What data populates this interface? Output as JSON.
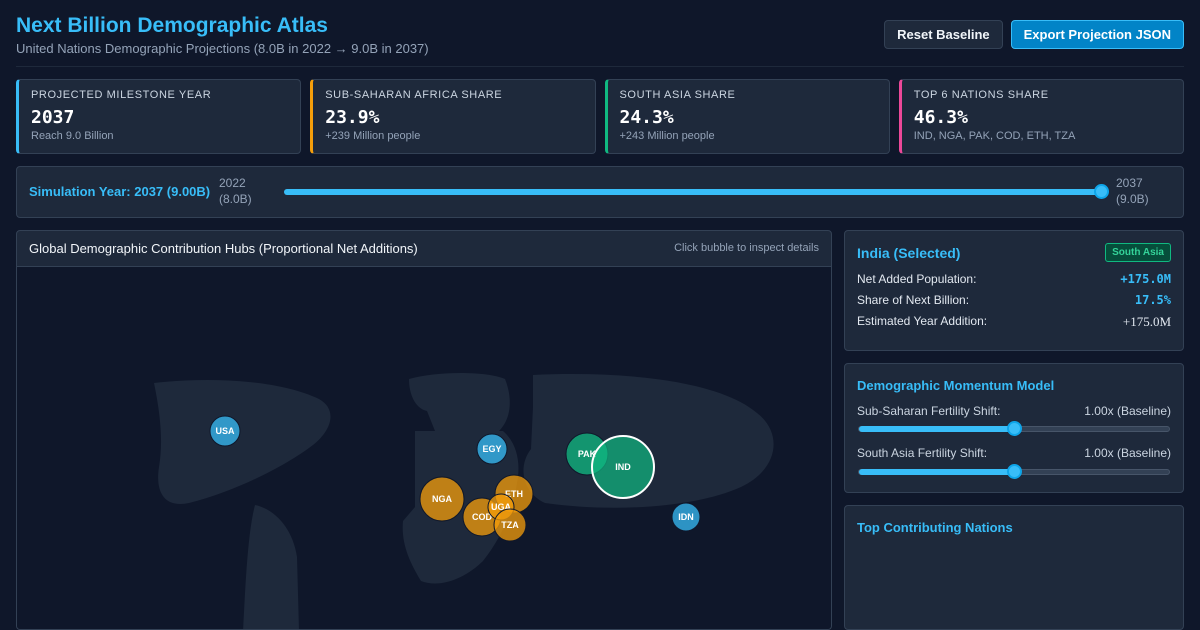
{
  "header": {
    "title": "Next Billion Demographic Atlas",
    "subtitle": "United Nations Demographic Projections (8.0B in 2022 → 9.0B in 2037)",
    "reset_label": "Reset Baseline",
    "export_label": "Export Projection JSON"
  },
  "kpis": [
    {
      "label": "Projected Milestone Year",
      "value": "2037",
      "note": "Reach 9.0 Billion",
      "color": "#38bdf8"
    },
    {
      "label": "Sub-Saharan Africa Share",
      "value": "23.9%",
      "note": "+239 Million people",
      "color": "#f59e0b"
    },
    {
      "label": "South Asia Share",
      "value": "24.3%",
      "note": "+243 Million people",
      "color": "#10b981"
    },
    {
      "label": "Top 6 Nations Share",
      "value": "46.3%",
      "note": "IND, NGA, PAK, COD, ETH, TZA",
      "color": "#ec4899"
    }
  ],
  "simulation": {
    "label": "Simulation Year: 2037 (9.00B)",
    "min_year": "2022",
    "min_pop": "(8.0B)",
    "max_year": "2037",
    "max_pop": "(9.0B)",
    "year_min": 2022,
    "year_max": 2037,
    "year_value": 2037
  },
  "map": {
    "title": "Global Demographic Contribution Hubs (Proportional Net Additions)",
    "hint": "Click bubble to inspect details",
    "bubbles": [
      {
        "code": "USA",
        "color": "#38bdf8"
      },
      {
        "code": "EGY",
        "color": "#38bdf8"
      },
      {
        "code": "NGA",
        "color": "#f59e0b"
      },
      {
        "code": "ETH",
        "color": "#f59e0b"
      },
      {
        "code": "COD",
        "color": "#f59e0b"
      },
      {
        "code": "UGA",
        "color": "#f59e0b"
      },
      {
        "code": "TZA",
        "color": "#f59e0b"
      },
      {
        "code": "PAK",
        "color": "#10b981"
      },
      {
        "code": "IND",
        "color": "#10b981"
      },
      {
        "code": "IDN",
        "color": "#38bdf8"
      }
    ]
  },
  "details": {
    "title": "India (Selected)",
    "region": "South Asia",
    "rows": [
      {
        "label": "Net Added Population:",
        "value": "+175.0M"
      },
      {
        "label": "Share of Next Billion:",
        "value": "17.5%"
      },
      {
        "label": "Estimated Year Addition:",
        "value": "+175.0M"
      }
    ]
  },
  "momentum": {
    "title": "Demographic Momentum Model",
    "shifts": [
      {
        "label": "Sub-Saharan Fertility Shift:",
        "value": "1.00x (Baseline)",
        "level": 0.5
      },
      {
        "label": "South Asia Fertility Shift:",
        "value": "1.00x (Baseline)",
        "level": 0.5
      }
    ]
  },
  "top": {
    "title": "Top Contributing Nations"
  }
}
